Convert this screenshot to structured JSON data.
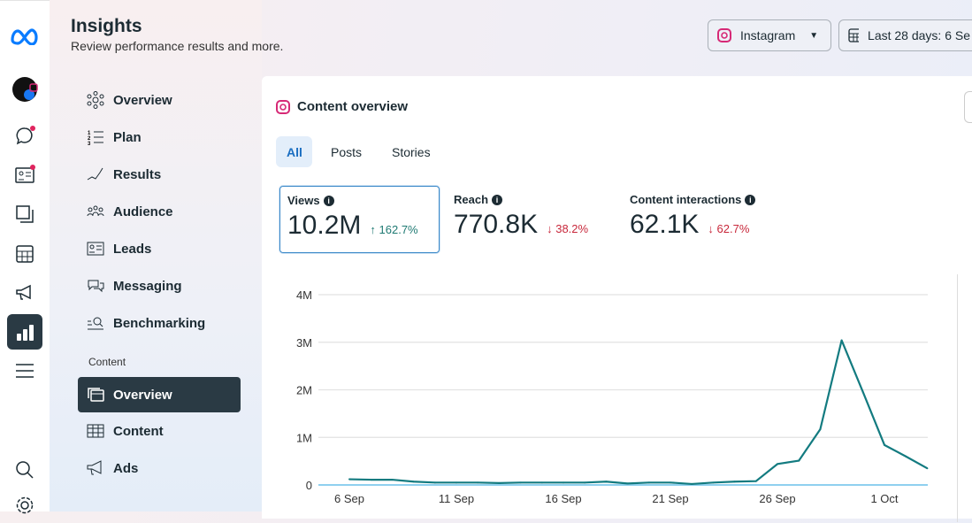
{
  "header": {
    "title": "Insights",
    "subtitle": "Review performance results and more."
  },
  "platform_select": {
    "label": "Instagram"
  },
  "date_select": {
    "label": "Last 28 days: 6 Se"
  },
  "nav": {
    "items": [
      {
        "label": "Overview"
      },
      {
        "label": "Plan"
      },
      {
        "label": "Results"
      },
      {
        "label": "Audience"
      },
      {
        "label": "Leads"
      },
      {
        "label": "Messaging"
      },
      {
        "label": "Benchmarking"
      }
    ],
    "section": "Content",
    "content_items": [
      {
        "label": "Overview",
        "active": true
      },
      {
        "label": "Content"
      },
      {
        "label": "Ads"
      }
    ]
  },
  "card": {
    "title": "Content overview",
    "tabs": [
      {
        "label": "All",
        "active": true
      },
      {
        "label": "Posts"
      },
      {
        "label": "Stories"
      }
    ]
  },
  "metrics": [
    {
      "label": "Views",
      "value": "10.2M",
      "delta": "162.7%",
      "direction": "up",
      "selected": true
    },
    {
      "label": "Reach",
      "value": "770.8K",
      "delta": "38.2%",
      "direction": "down"
    },
    {
      "label": "Content interactions",
      "value": "62.1K",
      "delta": "62.7%",
      "direction": "down"
    }
  ],
  "colors": {
    "accent": "#1a6ec1",
    "line": "#137b80",
    "baseline": "#8fd0ef",
    "up": "#1f7a73",
    "down": "#c8283b",
    "active_nav": "#2a3a44"
  },
  "chart_data": {
    "type": "line",
    "x": [
      "6 Sep",
      "7 Sep",
      "8 Sep",
      "9 Sep",
      "10 Sep",
      "11 Sep",
      "12 Sep",
      "13 Sep",
      "14 Sep",
      "15 Sep",
      "16 Sep",
      "17 Sep",
      "18 Sep",
      "19 Sep",
      "20 Sep",
      "21 Sep",
      "22 Sep",
      "23 Sep",
      "24 Sep",
      "25 Sep",
      "26 Sep",
      "27 Sep",
      "28 Sep",
      "29 Sep",
      "30 Sep",
      "1 Oct",
      "2 Oct",
      "3 Oct"
    ],
    "series": [
      {
        "values": [
          0.12,
          0.11,
          0.11,
          0.07,
          0.05,
          0.05,
          0.05,
          0.04,
          0.05,
          0.05,
          0.05,
          0.05,
          0.07,
          0.03,
          0.05,
          0.05,
          0.02,
          0.05,
          0.07,
          0.08,
          0.44,
          0.51,
          1.17,
          3.04,
          1.95,
          0.84,
          0.6,
          0.35
        ]
      }
    ],
    "xticks": [
      "6 Sep",
      "11 Sep",
      "16 Sep",
      "21 Sep",
      "26 Sep",
      "1 Oct"
    ],
    "yticks": [
      "0",
      "1M",
      "2M",
      "3M",
      "4M"
    ],
    "ylim": [
      0,
      4
    ],
    "yunit": "M",
    "grid": true
  }
}
